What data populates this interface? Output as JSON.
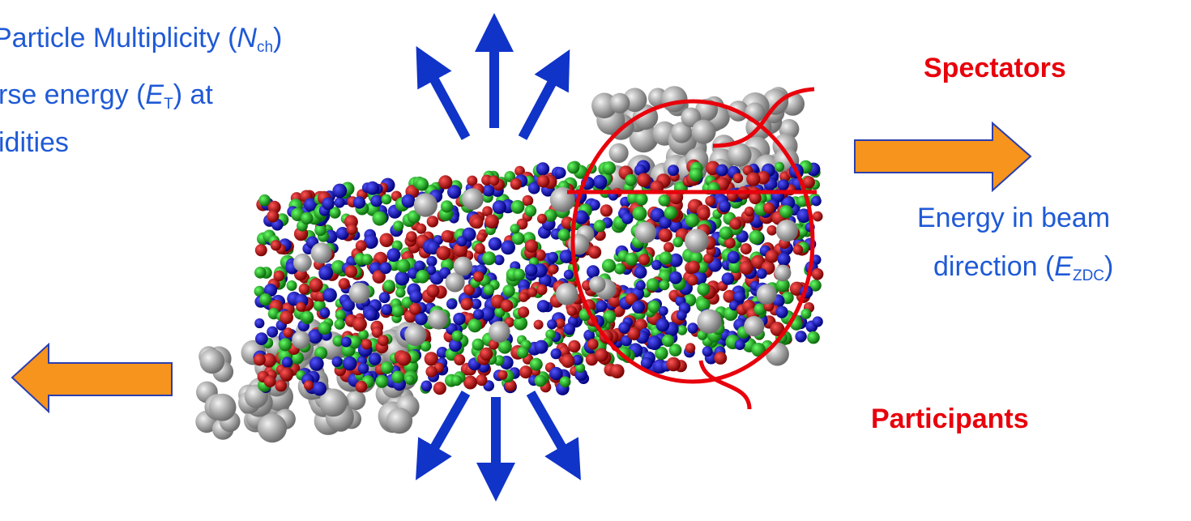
{
  "left_label": {
    "line1": {
      "text": "Particle Multiplicity (",
      "var": "N",
      "sub": "ch",
      "close": ")"
    },
    "line2": {
      "text": "rse energy (",
      "var": "E",
      "sub": "T",
      "close": ") at"
    },
    "line3": "idities"
  },
  "spectators": "Spectators",
  "participants": "Participants",
  "right_label": {
    "line1": "Energy in beam",
    "line2": {
      "text": "direction (",
      "var": "E",
      "sub": "ZDC",
      "close": ")"
    }
  }
}
